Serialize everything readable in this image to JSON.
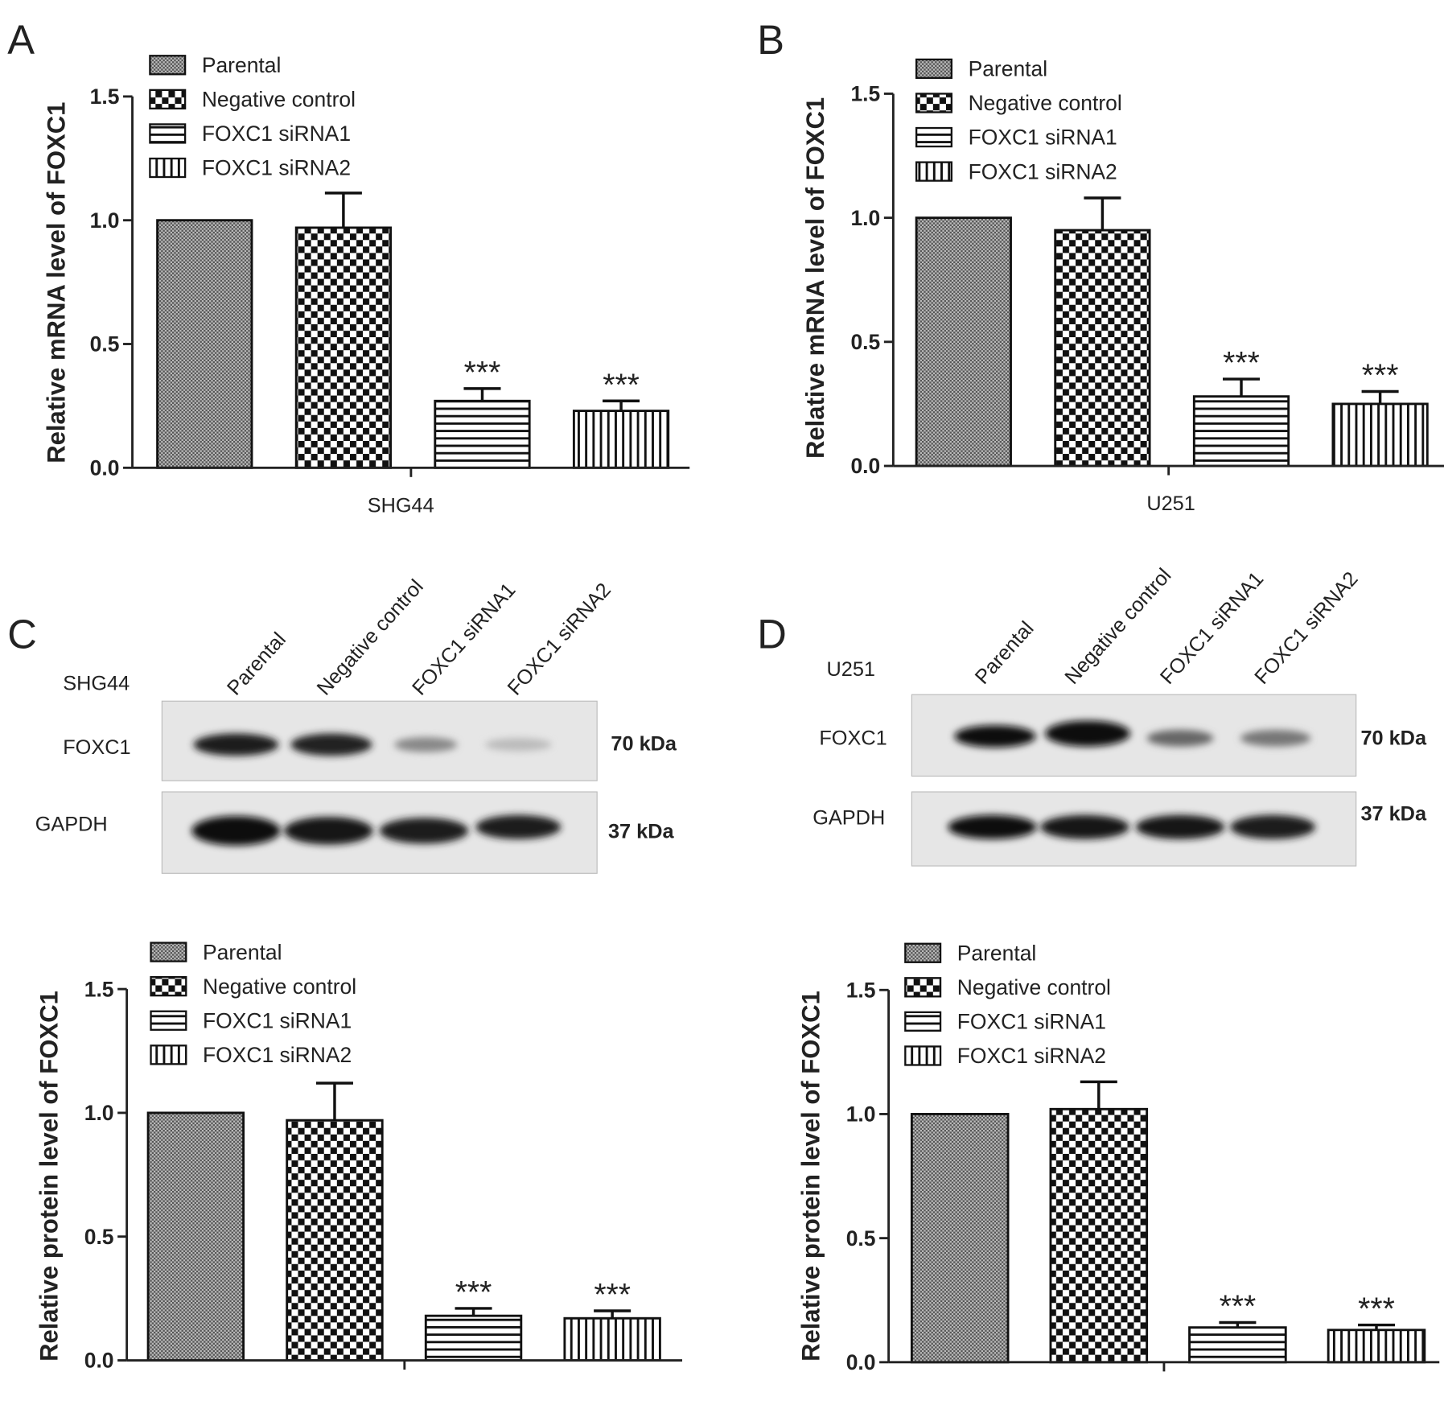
{
  "panels": [
    "A",
    "B",
    "C",
    "D"
  ],
  "blots": [
    {
      "cell_line": "SHG44",
      "lanes": [
        "Parental",
        "Negative control",
        "FOXC1 siRNA1",
        "FOXC1 siRNA2"
      ],
      "rows": [
        {
          "label": "FOXC1",
          "size": "70 kDa"
        },
        {
          "label": "GAPDH",
          "size": "37 kDa"
        }
      ]
    },
    {
      "cell_line": "U251",
      "lanes": [
        "Parental",
        "Negative control",
        "FOXC1 siRNA1",
        "FOXC1 siRNA2"
      ],
      "rows": [
        {
          "label": "FOXC1",
          "size": "70 kDa"
        },
        {
          "label": "GAPDH",
          "size": "37 kDa"
        }
      ]
    }
  ],
  "chart_data": [
    {
      "type": "bar",
      "ylabel": "Relative mRNA level of FOXC1",
      "xlabel": "SHG44",
      "categories": [
        "Parental",
        "Negative control",
        "FOXC1 siRNA1",
        "FOXC1 siRNA2"
      ],
      "patterns": [
        "crosshatch",
        "checker",
        "hlines",
        "vlines"
      ],
      "values": [
        1.0,
        0.97,
        0.27,
        0.23
      ],
      "errors": [
        0,
        0.14,
        0.05,
        0.04
      ],
      "significance": [
        null,
        null,
        "***",
        "***"
      ],
      "ylim": [
        0,
        1.5
      ],
      "yticks": [
        {
          "value": 0,
          "label": "0.0"
        },
        {
          "value": 0.5,
          "label": "0.5"
        },
        {
          "value": 1,
          "label": "1.0"
        },
        {
          "value": 1.5,
          "label": "1.5"
        }
      ]
    },
    {
      "type": "bar",
      "ylabel": "Relative mRNA level of FOXC1",
      "xlabel": "U251",
      "categories": [
        "Parental",
        "Negative control",
        "FOXC1 siRNA1",
        "FOXC1 siRNA2"
      ],
      "patterns": [
        "crosshatch",
        "checker",
        "hlines",
        "vlines"
      ],
      "values": [
        1.0,
        0.95,
        0.28,
        0.25
      ],
      "errors": [
        0,
        0.13,
        0.07,
        0.05
      ],
      "significance": [
        null,
        null,
        "***",
        "***"
      ],
      "ylim": [
        0,
        1.5
      ],
      "yticks": [
        {
          "value": 0,
          "label": "0.0"
        },
        {
          "value": 0.5,
          "label": "0.5"
        },
        {
          "value": 1,
          "label": "1.0"
        },
        {
          "value": 1.5,
          "label": "1.5"
        }
      ]
    },
    {
      "type": "bar",
      "ylabel": "Relative protein level of FOXC1",
      "categories": [
        "Parental",
        "Negative control",
        "FOXC1 siRNA1",
        "FOXC1 siRNA2"
      ],
      "patterns": [
        "crosshatch",
        "checker",
        "hlines",
        "vlines"
      ],
      "values": [
        1.0,
        0.97,
        0.18,
        0.17
      ],
      "errors": [
        0,
        0.15,
        0.03,
        0.03
      ],
      "significance": [
        null,
        null,
        "***",
        "***"
      ],
      "ylim": [
        0,
        1.5
      ],
      "yticks": [
        {
          "value": 0,
          "label": "0.0"
        },
        {
          "value": 0.5,
          "label": "0.5"
        },
        {
          "value": 1,
          "label": "1.0"
        },
        {
          "value": 1.5,
          "label": "1.5"
        }
      ]
    },
    {
      "type": "bar",
      "ylabel": "Relative protein level of FOXC1",
      "categories": [
        "Parental",
        "Negative control",
        "FOXC1 siRNA1",
        "FOXC1 siRNA2"
      ],
      "patterns": [
        "crosshatch",
        "checker",
        "hlines",
        "vlines"
      ],
      "values": [
        1.0,
        1.02,
        0.14,
        0.13
      ],
      "errors": [
        0,
        0.11,
        0.02,
        0.02
      ],
      "significance": [
        null,
        null,
        "***",
        "***"
      ],
      "ylim": [
        0,
        1.5
      ],
      "yticks": [
        {
          "value": 0,
          "label": "0.0"
        },
        {
          "value": 0.5,
          "label": "0.5"
        },
        {
          "value": 1,
          "label": "1.0"
        },
        {
          "value": 1.5,
          "label": "1.5"
        }
      ]
    }
  ]
}
